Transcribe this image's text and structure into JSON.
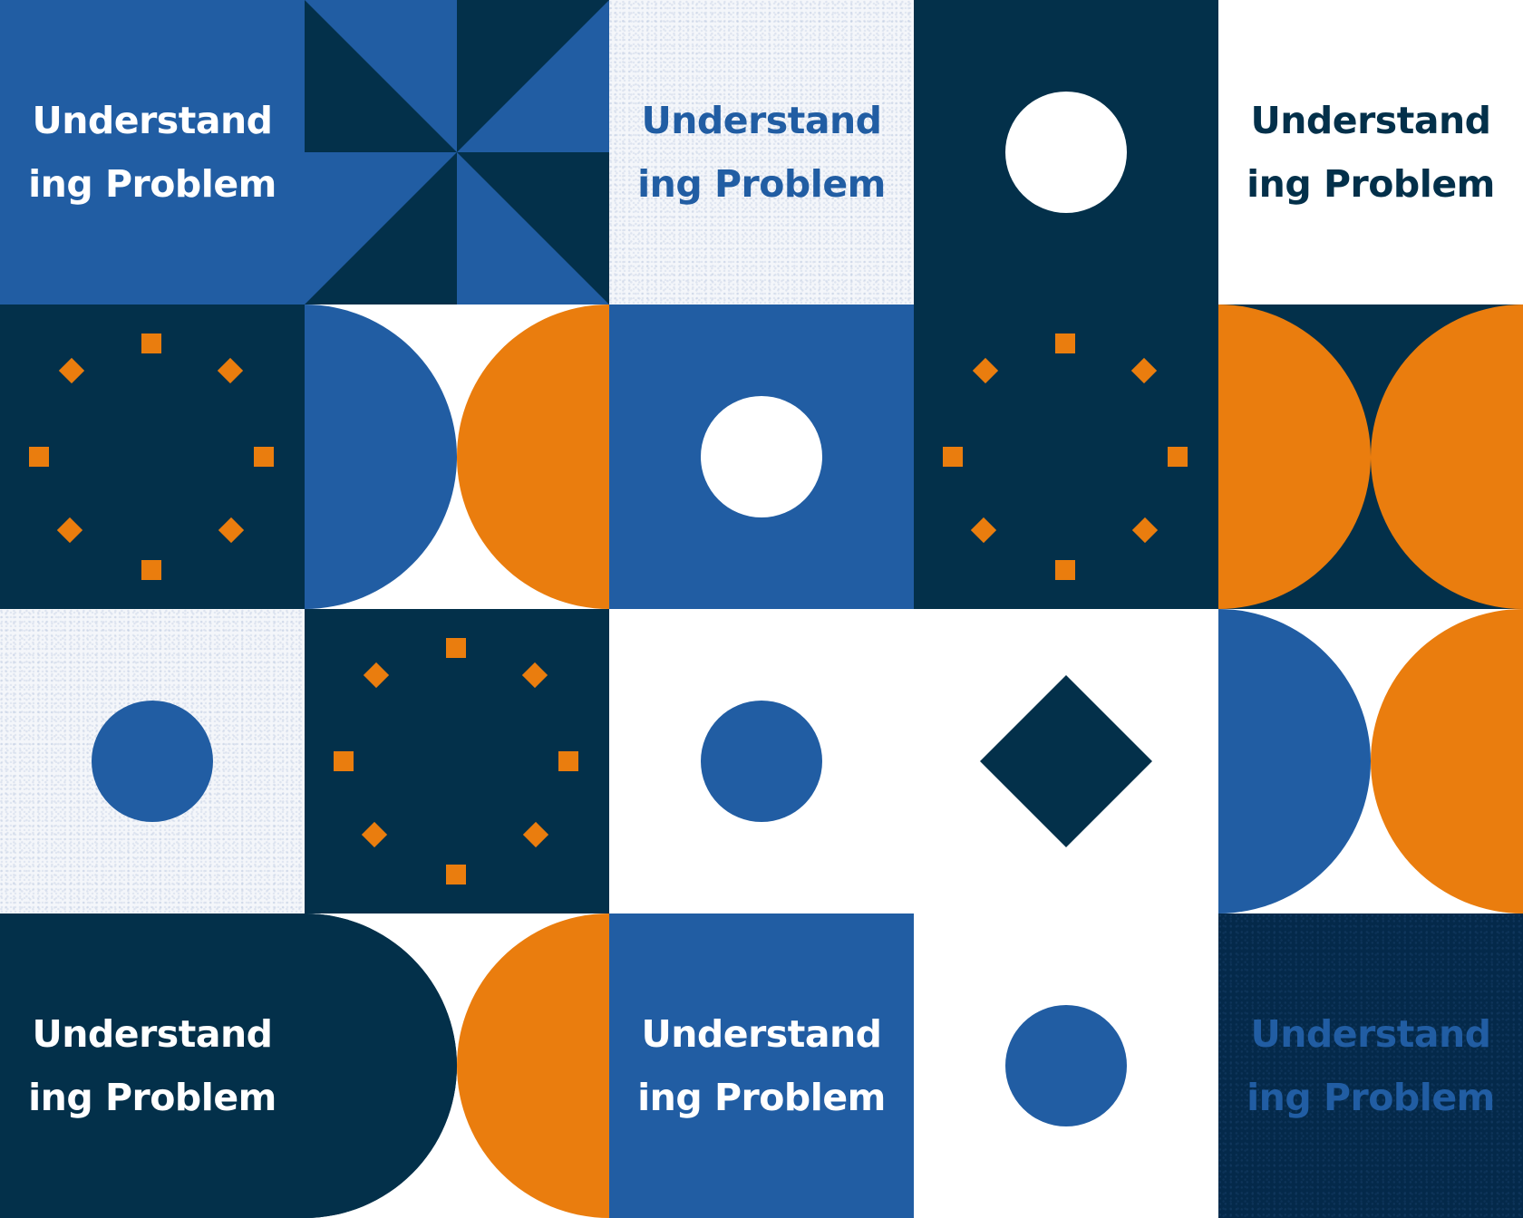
{
  "palette": {
    "dark_navy": "#03304a",
    "blue": "#215da3",
    "orange": "#ea7d0e",
    "white": "#ffffff",
    "light": "#f4f6fa"
  },
  "tiles": {
    "r1c1": {
      "line1": "Understand",
      "line2": "ing Problem"
    },
    "r1c3": {
      "line1": "Understand",
      "line2": "ing Problem"
    },
    "r1c5": {
      "line1": "Understand",
      "line2": "ing Problem"
    },
    "r4c1": {
      "line1": "Understand",
      "line2": "ing Problem"
    },
    "r4c3": {
      "line1": "Understand",
      "line2": "ing Problem"
    },
    "r4c5": {
      "line1": "Understand",
      "line2": "ing Problem"
    }
  },
  "icons": [
    "pinwheel-triangles-icon",
    "circle-icon",
    "dot-ring-icon",
    "half-circle-icon",
    "diamond-icon"
  ]
}
